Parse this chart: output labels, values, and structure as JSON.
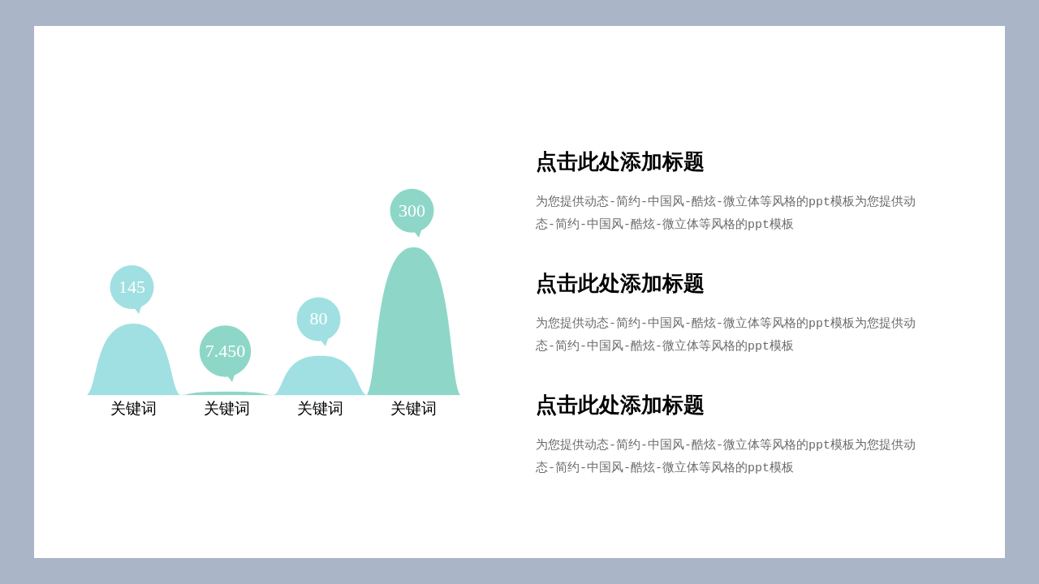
{
  "chart_data": {
    "type": "bar",
    "categories": [
      "关键词",
      "关键词",
      "关键词",
      "关键词"
    ],
    "values": [
      145,
      7.45,
      80,
      300
    ],
    "value_labels": [
      "145",
      "7.450",
      "80",
      "300"
    ],
    "colors": [
      "#a0e0e2",
      "#8ed7c8",
      "#a0e0e2",
      "#8ed7c8"
    ],
    "tick_labels": "x",
    "annotations": [
      "点击此处添加标题",
      "为您提供动态-简约-中国风-酷炫-微立体等风格的ppt模板为您提供动态-简约-中国风-酷炫-微立体等风格的ppt模板",
      "点击此处添加标题",
      "为您提供动态-简约-中国风-酷炫-微立体等风格的ppt模板为您提供动态-简约-中国风-酷炫-微立体等风格的ppt模板",
      "点击此处添加标题",
      "为您提供动态-简约-中国风-酷炫-微立体等风格的ppt模板为您提供动态-简约-中国风-酷炫-微立体等风格的ppt模板"
    ]
  }
}
